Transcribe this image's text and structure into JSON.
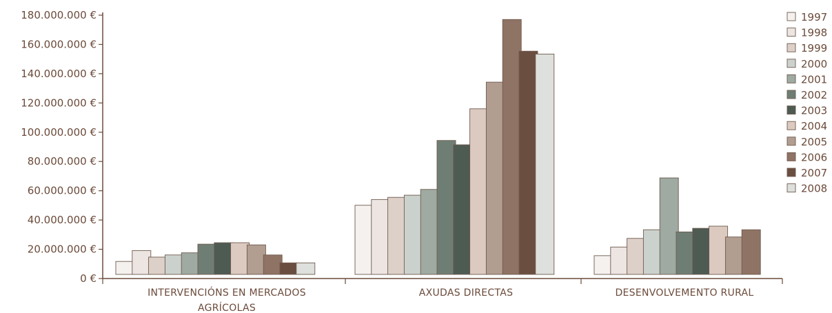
{
  "chart_data": {
    "type": "bar",
    "title": "",
    "xlabel": "",
    "ylabel": "",
    "ylim": [
      0,
      180000000
    ],
    "y_ticks": [
      "0 €",
      "20.000.000 €",
      "40.000.000 €",
      "60.000.000 €",
      "80.000.000 €",
      "100.000.000 €",
      "120.000.000 €",
      "140.000.000 €",
      "160.000.000 €",
      "180.000.000 €"
    ],
    "categories": [
      [
        "INTERVENCIÓNS EN MERCADOS",
        "AGRÍCOLAS"
      ],
      [
        "AXUDAS DIRECTAS"
      ],
      [
        "DESENVOLVEMENTO RURAL"
      ]
    ],
    "legend_position": "right",
    "grid": false,
    "series": [
      {
        "name": "1997",
        "color": "#f4f1ee",
        "values": [
          9000000,
          48000000,
          13000000
        ]
      },
      {
        "name": "1998",
        "color": "#ece5e2",
        "values": [
          16500000,
          52000000,
          19000000
        ]
      },
      {
        "name": "1999",
        "color": "#ddd0c9",
        "values": [
          12000000,
          53500000,
          25000000
        ]
      },
      {
        "name": "2000",
        "color": "#cbd2cd",
        "values": [
          13500000,
          55000000,
          31000000
        ]
      },
      {
        "name": "2001",
        "color": "#9eaaa2",
        "values": [
          15000000,
          59000000,
          67000000
        ]
      },
      {
        "name": "2002",
        "color": "#6f7e74",
        "values": [
          21000000,
          93000000,
          29500000
        ]
      },
      {
        "name": "2003",
        "color": "#4d5b53",
        "values": [
          22000000,
          90000000,
          32000000
        ]
      },
      {
        "name": "2004",
        "color": "#dccac1",
        "values": [
          22000000,
          115000000,
          33500000
        ]
      },
      {
        "name": "2005",
        "color": "#b29d91",
        "values": [
          20500000,
          133500000,
          26000000
        ]
      },
      {
        "name": "2006",
        "color": "#8f7365",
        "values": [
          13500000,
          177000000,
          31000000
        ]
      },
      {
        "name": "2007",
        "color": "#6a4f40",
        "values": [
          8000000,
          155000000,
          null
        ]
      },
      {
        "name": "2008",
        "color": "#dde0dc",
        "values": [
          8000000,
          153000000,
          null
        ]
      }
    ]
  }
}
